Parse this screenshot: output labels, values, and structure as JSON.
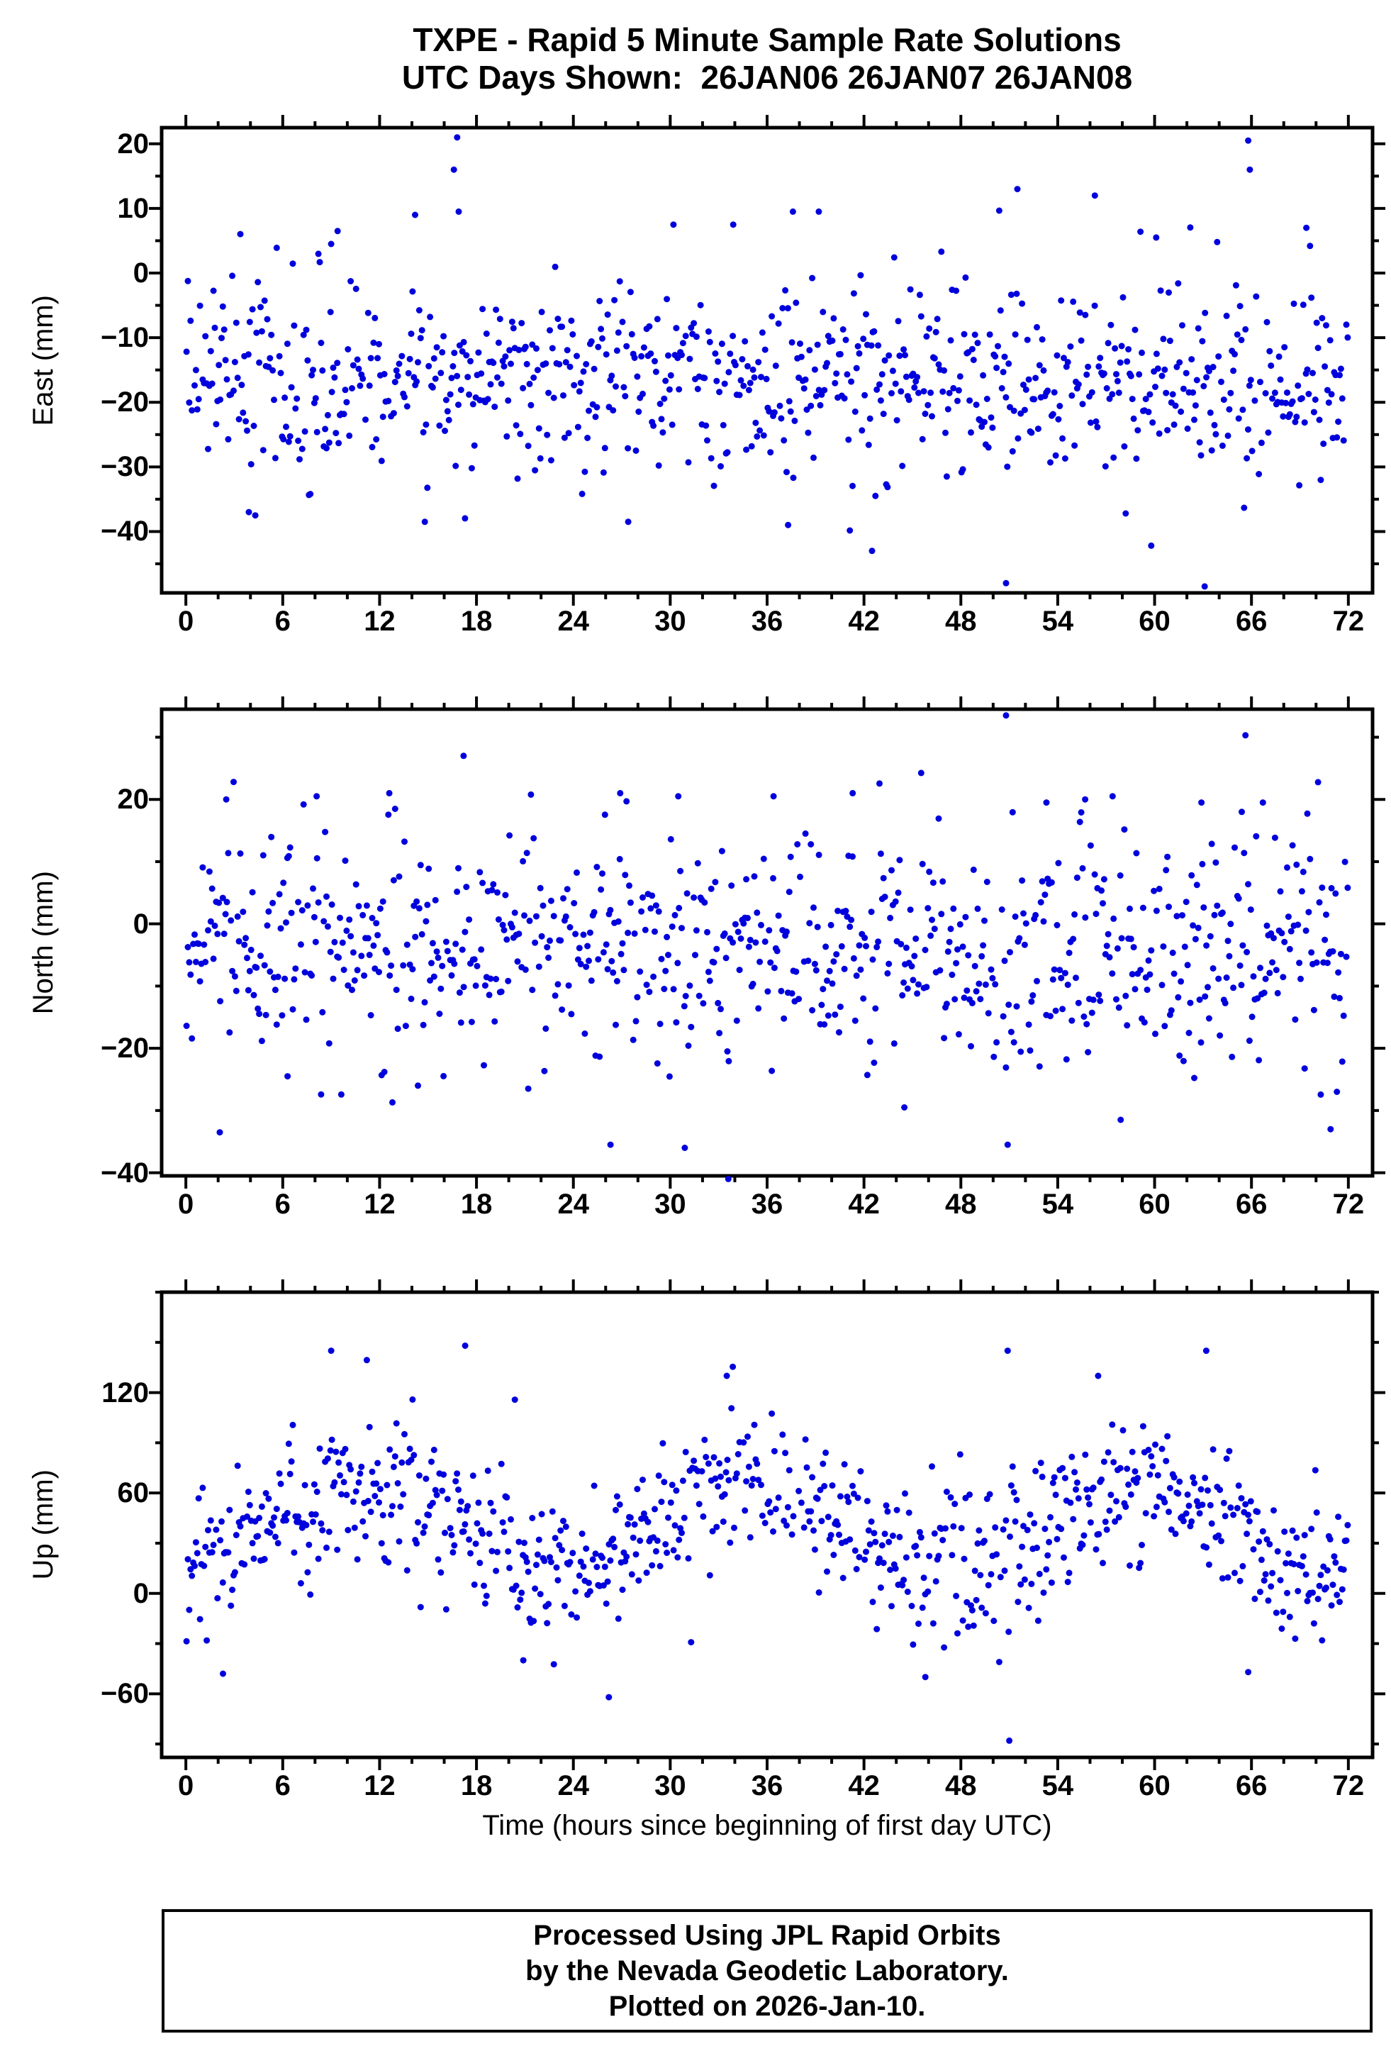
{
  "title": {
    "line1": "TXPE - Rapid 5 Minute Sample Rate Solutions",
    "line2": "UTC Days Shown:  26JAN06 26JAN07 26JAN08"
  },
  "footer": {
    "line1": "Processed Using JPL Rapid Orbits",
    "line2": "by the Nevada Geodetic Laboratory.",
    "line3": "Plotted on 2026-Jan-10."
  },
  "chart_data": {
    "type": "scatter",
    "title": "TXPE - Rapid 5 Minute Sample Rate Solutions",
    "subtitle": "UTC Days Shown:  26JAN06 26JAN07 26JAN08",
    "xlabel": "Time (hours since beginning of first day UTC)",
    "station": "TXPE",
    "utc_days": [
      "26JAN06",
      "26JAN07",
      "26JAN08"
    ],
    "x": {
      "min": -1.5,
      "max": 73.5,
      "ticks": [
        0,
        6,
        12,
        18,
        24,
        30,
        36,
        42,
        48,
        54,
        60,
        66,
        72
      ],
      "minor_step": 2,
      "sample_interval_hours": 0.0833
    },
    "marker": {
      "color": "#0000dd",
      "radius": 4.5
    },
    "panels": [
      {
        "name": "east",
        "ylabel": "East (mm)",
        "ylim": [
          -49.5,
          22.5
        ],
        "yticks": [
          20,
          10,
          0,
          -10,
          -20,
          -30,
          -40
        ],
        "y_minor_step": 5,
        "gen": {
          "seed": 101,
          "n": 864,
          "dropout": 0.07,
          "mean": -16.5,
          "std": 7.2,
          "tail_frac": 0.1,
          "tail_mult": 1.7,
          "diurnal_amp": 0,
          "diurnal_period": 24,
          "diurnal_phase": 0
        },
        "outliers": [
          [
            16.8,
            21
          ],
          [
            16.6,
            16
          ],
          [
            16.9,
            9.5
          ],
          [
            65.8,
            20.5
          ],
          [
            65.9,
            16
          ],
          [
            51.5,
            13
          ],
          [
            56.3,
            12
          ],
          [
            14.2,
            9
          ],
          [
            37.6,
            9.5
          ],
          [
            39.2,
            9.5
          ],
          [
            30.2,
            7.5
          ],
          [
            9.4,
            6.5
          ],
          [
            9.0,
            4.5
          ],
          [
            69.4,
            7
          ],
          [
            60.1,
            5.5
          ],
          [
            33.9,
            7.5
          ],
          [
            50.8,
            -48
          ],
          [
            63.1,
            -48.5
          ],
          [
            42.5,
            -43
          ],
          [
            27.4,
            -38.5
          ],
          [
            3.9,
            -37
          ],
          [
            4.3,
            -37.5
          ],
          [
            14.8,
            -38.5
          ],
          [
            37.3,
            -39
          ]
        ]
      },
      {
        "name": "north",
        "ylabel": "North (mm)",
        "ylim": [
          -40.5,
          34.5
        ],
        "yticks": [
          20,
          0,
          -20,
          -40
        ],
        "y_minor_step": 10,
        "gen": {
          "seed": 202,
          "n": 864,
          "dropout": 0.07,
          "mean": -3.5,
          "std": 8.5,
          "tail_frac": 0.08,
          "tail_mult": 1.7,
          "diurnal_amp": 0,
          "diurnal_period": 24,
          "diurnal_phase": 0
        },
        "outliers": [
          [
            50.8,
            33.5
          ],
          [
            17.2,
            27
          ],
          [
            2.5,
            20
          ],
          [
            8.1,
            20.5
          ],
          [
            12.6,
            21
          ],
          [
            26.9,
            21
          ],
          [
            30.5,
            20.5
          ],
          [
            36.4,
            20.5
          ],
          [
            41.3,
            21
          ],
          [
            53.3,
            19.5
          ],
          [
            55.7,
            20
          ],
          [
            57.4,
            20.5
          ],
          [
            62.9,
            19.5
          ],
          [
            65.4,
            18
          ],
          [
            33.6,
            -41
          ],
          [
            26.3,
            -35.5
          ],
          [
            30.9,
            -36
          ],
          [
            50.9,
            -35.5
          ],
          [
            2.1,
            -33.5
          ],
          [
            70.9,
            -33
          ],
          [
            57.9,
            -31.5
          ],
          [
            44.5,
            -29.5
          ],
          [
            6.3,
            -24.5
          ]
        ]
      },
      {
        "name": "up",
        "ylabel": "Up (mm)",
        "ylim": [
          -98,
          180
        ],
        "yticks": [
          120,
          60,
          0,
          -60
        ],
        "y_minor_step": 30,
        "gen": {
          "seed": 303,
          "n": 864,
          "dropout": 0.07,
          "mean": 40,
          "std": 21,
          "tail_frac": 0.08,
          "tail_mult": 1.6,
          "diurnal_amp": 24,
          "diurnal_period": 24,
          "diurnal_phase": 5
        },
        "outliers": [
          [
            9.0,
            145
          ],
          [
            17.3,
            148
          ],
          [
            50.9,
            145
          ],
          [
            63.2,
            145
          ],
          [
            33.5,
            130
          ],
          [
            56.5,
            130
          ],
          [
            51.0,
            -88
          ],
          [
            26.2,
            -62
          ],
          [
            2.3,
            -48
          ],
          [
            45.8,
            -50
          ],
          [
            65.8,
            -47
          ],
          [
            20.9,
            -40
          ]
        ]
      }
    ]
  }
}
